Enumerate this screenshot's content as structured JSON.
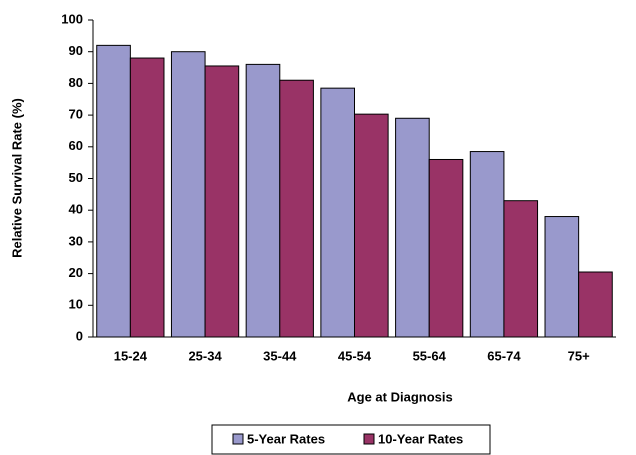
{
  "chart_data": {
    "type": "bar",
    "x_label": "Age at Diagnosis",
    "y_label": "Relative Survival Rate (%)",
    "categories": [
      "15-24",
      "25-34",
      "35-44",
      "45-54",
      "55-64",
      "65-74",
      "75+"
    ],
    "series": [
      {
        "name": "5-Year Rates",
        "color": "#9999cc",
        "values": [
          92,
          90,
          86,
          78.5,
          69,
          58.5,
          38
        ]
      },
      {
        "name": "10-Year Rates",
        "color": "#993366",
        "values": [
          88,
          85.5,
          81,
          70.3,
          56,
          43,
          20.5
        ]
      }
    ],
    "ylim": [
      0,
      100
    ],
    "yticks": [
      0,
      10,
      20,
      30,
      40,
      50,
      60,
      70,
      80,
      90,
      100
    ],
    "grid": false
  }
}
